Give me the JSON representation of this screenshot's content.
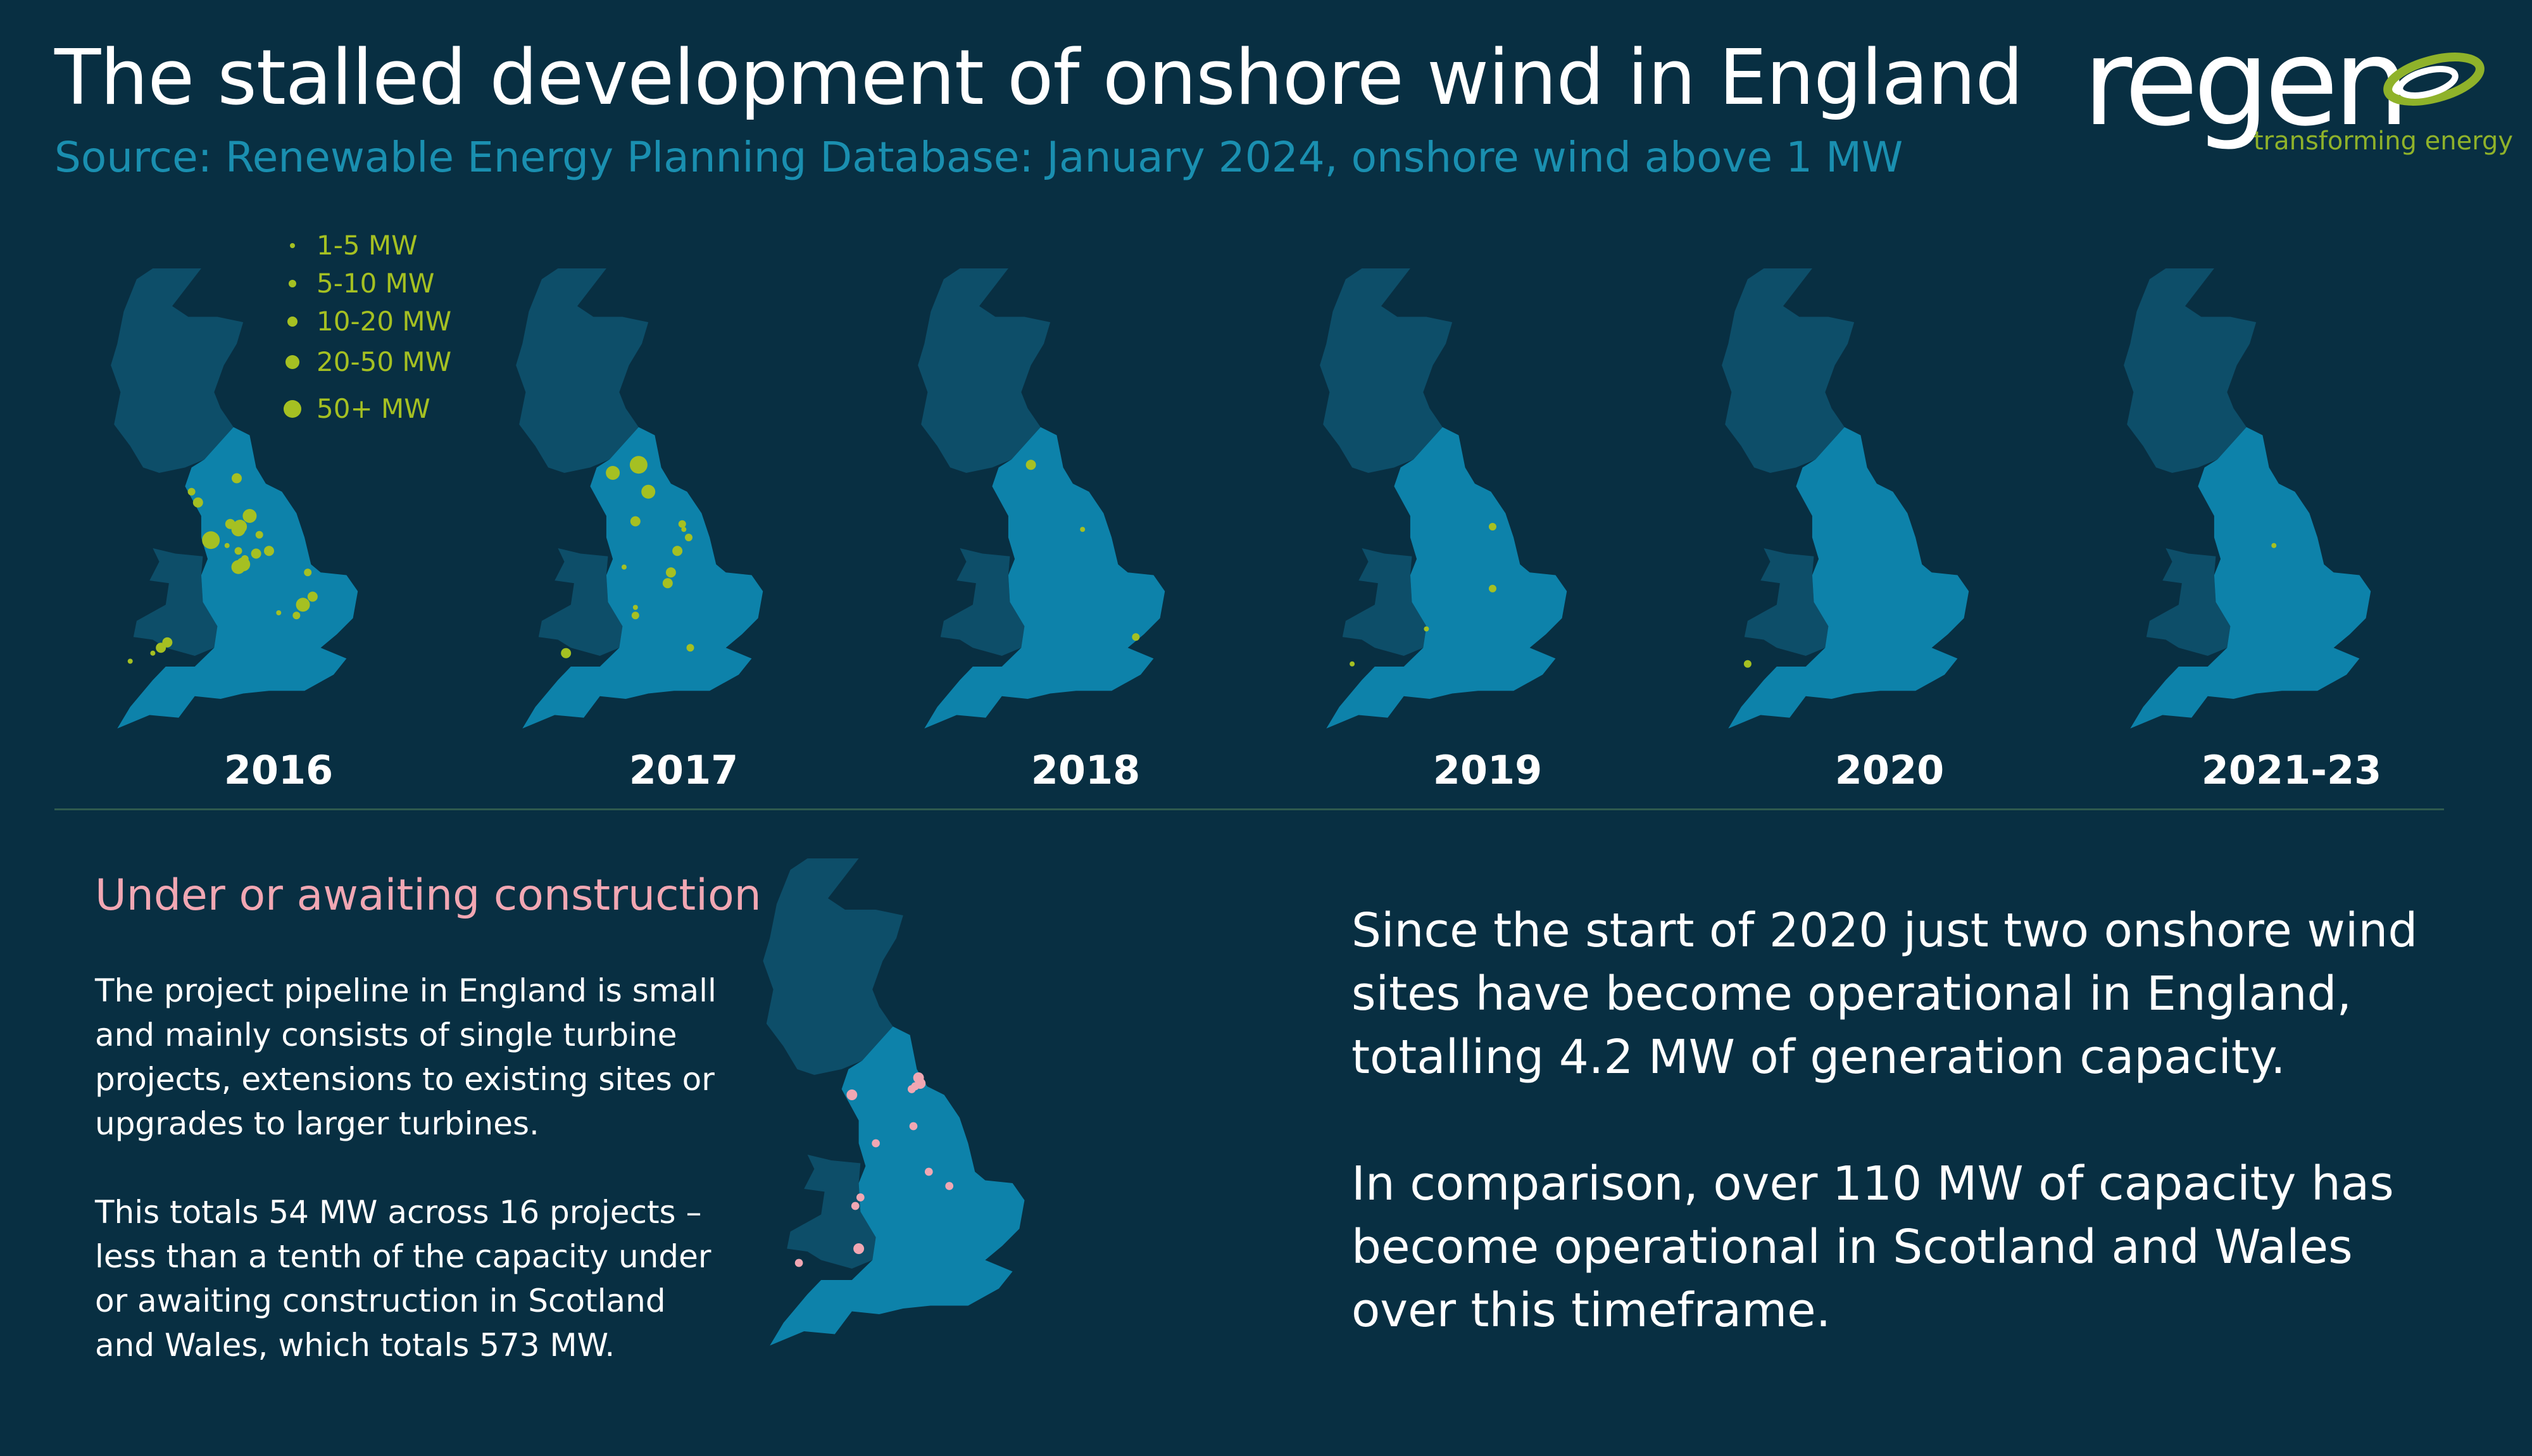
{
  "header": {
    "title": "The stalled development of onshore wind in England",
    "subtitle": "Source: Renewable Energy Planning Database: January 2024, onshore wind above 1 MW"
  },
  "logo": {
    "word": "regen",
    "tagline": "transforming energy"
  },
  "colors": {
    "background": "#082f42",
    "land_dark": "#0d4e69",
    "england": "#0d82aa",
    "operational_dot": "#a5c022",
    "pipeline_dot": "#f1a7b3",
    "subtitle": "#1a8fb0"
  },
  "legend": {
    "items": [
      {
        "label": "1-5 MW",
        "size": 1
      },
      {
        "label": "5-10 MW",
        "size": 2
      },
      {
        "label": "10-20 MW",
        "size": 3
      },
      {
        "label": "20-50 MW",
        "size": 4
      },
      {
        "label": "50+ MW",
        "size": 5
      }
    ]
  },
  "maps": [
    {
      "year": "2016",
      "sites": [
        {
          "lat": 54.7,
          "lon": -2.0,
          "size": 3
        },
        {
          "lat": 54.45,
          "lon": -3.4,
          "size": 2
        },
        {
          "lat": 54.25,
          "lon": -3.2,
          "size": 3
        },
        {
          "lat": 54.0,
          "lon": -1.6,
          "size": 4
        },
        {
          "lat": 53.85,
          "lon": -2.2,
          "size": 3
        },
        {
          "lat": 53.8,
          "lon": -1.9,
          "size": 4
        },
        {
          "lat": 53.75,
          "lon": -1.95,
          "size": 4
        },
        {
          "lat": 53.65,
          "lon": -1.3,
          "size": 2
        },
        {
          "lat": 53.55,
          "lon": -2.8,
          "size": 5
        },
        {
          "lat": 53.45,
          "lon": -2.3,
          "size": 1
        },
        {
          "lat": 53.35,
          "lon": -1.95,
          "size": 2
        },
        {
          "lat": 53.3,
          "lon": -1.4,
          "size": 3
        },
        {
          "lat": 53.35,
          "lon": -1.0,
          "size": 3
        },
        {
          "lat": 53.2,
          "lon": -1.75,
          "size": 2
        },
        {
          "lat": 53.1,
          "lon": -1.8,
          "size": 4
        },
        {
          "lat": 53.05,
          "lon": -1.95,
          "size": 4
        },
        {
          "lat": 52.95,
          "lon": 0.2,
          "size": 2
        },
        {
          "lat": 52.5,
          "lon": 0.35,
          "size": 3
        },
        {
          "lat": 52.35,
          "lon": 0.05,
          "size": 4
        },
        {
          "lat": 52.2,
          "lon": -0.7,
          "size": 1
        },
        {
          "lat": 52.15,
          "lon": -0.15,
          "size": 2
        },
        {
          "lat": 51.65,
          "lon": -4.15,
          "size": 3
        },
        {
          "lat": 51.55,
          "lon": -4.35,
          "size": 3
        },
        {
          "lat": 51.45,
          "lon": -4.6,
          "size": 1
        },
        {
          "lat": 51.3,
          "lon": -5.3,
          "size": 1
        }
      ]
    },
    {
      "year": "2017",
      "sites": [
        {
          "lat": 54.8,
          "lon": -2.9,
          "size": 4
        },
        {
          "lat": 54.95,
          "lon": -2.1,
          "size": 5
        },
        {
          "lat": 54.45,
          "lon": -1.8,
          "size": 4
        },
        {
          "lat": 53.9,
          "lon": -2.2,
          "size": 3
        },
        {
          "lat": 53.85,
          "lon": -0.75,
          "size": 2
        },
        {
          "lat": 53.75,
          "lon": -0.7,
          "size": 1
        },
        {
          "lat": 53.6,
          "lon": -0.55,
          "size": 2
        },
        {
          "lat": 53.35,
          "lon": -0.9,
          "size": 3
        },
        {
          "lat": 53.05,
          "lon": -2.55,
          "size": 1
        },
        {
          "lat": 52.95,
          "lon": -1.1,
          "size": 3
        },
        {
          "lat": 52.75,
          "lon": -1.2,
          "size": 3
        },
        {
          "lat": 52.3,
          "lon": -2.2,
          "size": 1
        },
        {
          "lat": 52.15,
          "lon": -2.2,
          "size": 2
        },
        {
          "lat": 51.55,
          "lon": -0.5,
          "size": 2
        },
        {
          "lat": 51.45,
          "lon": -4.35,
          "size": 3
        }
      ]
    },
    {
      "year": "2018",
      "sites": [
        {
          "lat": 54.95,
          "lon": -2.4,
          "size": 3
        },
        {
          "lat": 53.75,
          "lon": -0.8,
          "size": 1
        },
        {
          "lat": 51.75,
          "lon": 0.85,
          "size": 2
        }
      ]
    },
    {
      "year": "2019",
      "sites": [
        {
          "lat": 53.8,
          "lon": -0.55,
          "size": 2
        },
        {
          "lat": 52.65,
          "lon": -0.55,
          "size": 2
        },
        {
          "lat": 51.9,
          "lon": -2.6,
          "size": 1
        },
        {
          "lat": 51.25,
          "lon": -4.9,
          "size": 1
        }
      ]
    },
    {
      "year": "2020",
      "sites": [
        {
          "lat": 51.25,
          "lon": -5.1,
          "size": 2
        }
      ]
    },
    {
      "year": "2021-23",
      "sites": [
        {
          "lat": 53.45,
          "lon": -1.25,
          "size": 1
        }
      ]
    }
  ],
  "pipeline": {
    "heading": "Under or awaiting construction",
    "para1": "The project pipeline in England is small and mainly consists of single turbine projects, extensions to existing sites or upgrades to larger turbines.",
    "para2": "This totals 54 MW across 16 projects – less than a tenth of the capacity under or awaiting construction in Scotland and Wales, which totals 573 MW.",
    "sites": [
      {
        "lat": 54.75,
        "lon": -1.35,
        "size": 3
      },
      {
        "lat": 54.65,
        "lon": -1.3,
        "size": 3
      },
      {
        "lat": 54.6,
        "lon": -1.45,
        "size": 2
      },
      {
        "lat": 54.55,
        "lon": -1.55,
        "size": 2
      },
      {
        "lat": 54.45,
        "lon": -3.3,
        "size": 3
      },
      {
        "lat": 53.9,
        "lon": -1.5,
        "size": 2
      },
      {
        "lat": 53.6,
        "lon": -2.6,
        "size": 2
      },
      {
        "lat": 53.1,
        "lon": -1.05,
        "size": 2
      },
      {
        "lat": 52.85,
        "lon": -0.45,
        "size": 2
      },
      {
        "lat": 52.65,
        "lon": -3.05,
        "size": 2
      },
      {
        "lat": 52.5,
        "lon": -3.2,
        "size": 2
      },
      {
        "lat": 51.75,
        "lon": -3.1,
        "size": 3
      },
      {
        "lat": 51.5,
        "lon": -4.85,
        "size": 2
      }
    ]
  },
  "summary": {
    "para1": "Since the start of 2020 just two onshore wind sites have become operational in England, totalling 4.2 MW of generation capacity.",
    "para2": "In comparison, over 110 MW of capacity has become operational in Scotland and Wales over this timeframe."
  }
}
